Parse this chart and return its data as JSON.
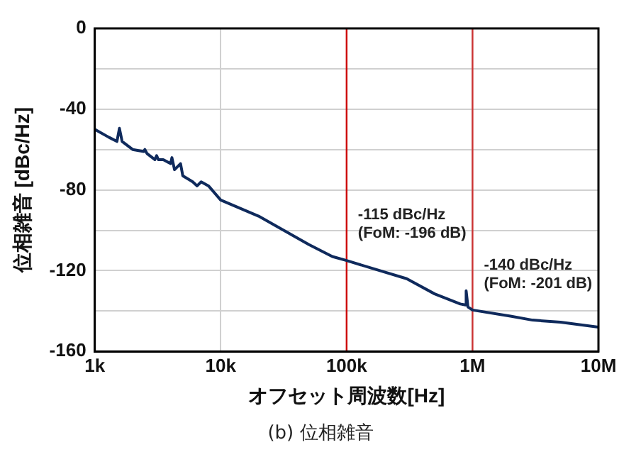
{
  "chart_data": {
    "type": "line",
    "xlabel": "オフセット周波数[Hz]",
    "ylabel": "位相雑音 [dBc/Hz]",
    "log": "x",
    "grid": true,
    "legend": false,
    "marker": "none",
    "line_style": "solid",
    "xlim": [
      1000,
      10000000
    ],
    "xticks": [
      {
        "value": 1000,
        "label": "1k"
      },
      {
        "value": 10000,
        "label": "10k"
      },
      {
        "value": 100000,
        "label": "100k"
      },
      {
        "value": 1000000,
        "label": "1M"
      },
      {
        "value": 10000000,
        "label": "10M"
      }
    ],
    "ylim": [
      -160,
      0
    ],
    "yticks": [
      -160,
      {
        "value": -140,
        "label": null
      },
      -120,
      {
        "value": -100,
        "label": null
      },
      -80,
      {
        "value": -60,
        "label": null
      },
      -40,
      {
        "value": -20,
        "label": null
      },
      0
    ],
    "series": [
      {
        "color": "#0f2a5c",
        "x": [
          1000,
          1300,
          1500,
          1570,
          1650,
          2000,
          2450,
          2500,
          2600,
          3000,
          3100,
          3200,
          3500,
          4000,
          4100,
          4300,
          4800,
          5000,
          6000,
          6500,
          7000,
          8000,
          10000,
          20000,
          50000,
          77000,
          100000,
          300000,
          500000,
          800000,
          880000,
          890000,
          920000,
          1000000,
          2000000,
          3000000,
          5000000,
          10000000
        ],
        "values": [
          -50,
          -54,
          -56,
          -49.5,
          -56,
          -60,
          -61,
          -60,
          -62,
          -65,
          -63,
          -65,
          -65,
          -67,
          -64,
          -70,
          -67,
          -73,
          -76,
          -78,
          -76,
          -78,
          -85,
          -93,
          -107,
          -113,
          -115,
          -124,
          -131.5,
          -136.5,
          -137,
          -130,
          -138,
          -139.5,
          -142.5,
          -144.5,
          -145.5,
          -148
        ]
      }
    ],
    "ref_lines": [
      {
        "axis": "x",
        "value": 100000,
        "color": "#cc0000"
      },
      {
        "axis": "x",
        "value": 1000000,
        "color": "#cc3333"
      }
    ],
    "annotations": [
      {
        "text": "-115 dBc/Hz\n(FoM: -196 dB)",
        "x": 100000,
        "y": -115
      },
      {
        "text": "-140 dBc/Hz\n(FoM: -201 dB)",
        "x": 1000000,
        "y": -140
      },
      "(b) 位相雑音"
    ]
  }
}
